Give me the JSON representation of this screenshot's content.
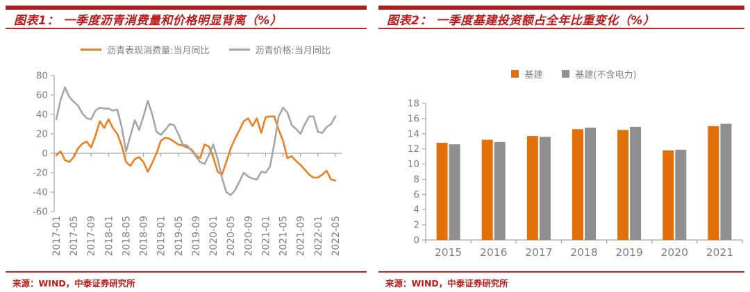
{
  "panels": [
    {
      "title": "图表1： 一季度沥青消费量和价格明显背离（%）",
      "source": "来源：WIND，中泰证券研究所"
    },
    {
      "title": "图表2： 一季度基建投资额占全年比重变化（%）",
      "source": "来源：WIND，中泰证券研究所"
    }
  ],
  "colors": {
    "header_rule_red": "#A82020",
    "title_red": "#C01919",
    "thin_rule_red": "#C02525",
    "source_red": "#BE1A1A",
    "axis_gray": "#A6A6A6",
    "label_gray": "#7F7F7F"
  },
  "chart_data": [
    {
      "type": "line",
      "title": "一季度沥青消费量和价格明显背离（%）",
      "x_start": "2017-01",
      "x_end": "2022-05",
      "points_per_series": 65,
      "x_tick_interval_months": 4,
      "x_tick_labels": [
        "2017-01",
        "2017-05",
        "2017-09",
        "2018-01",
        "2018-05",
        "2018-09",
        "2019-01",
        "2019-05",
        "2019-09",
        "2020-01",
        "2020-05",
        "2020-09",
        "2021-01",
        "2021-05",
        "2021-09",
        "2022-01",
        "2022-05"
      ],
      "ylim": [
        -60,
        80
      ],
      "y_ticks": [
        80,
        60,
        40,
        20,
        0,
        -20,
        -40,
        -60
      ],
      "grid": false,
      "legend_position": "top",
      "series": [
        {
          "name": "沥青表现消费量:当月同比",
          "color": "#EE7E20",
          "values": [
            -2,
            2,
            -7,
            -9,
            -4,
            5,
            10,
            12,
            6,
            18,
            33,
            26,
            35,
            26,
            20,
            8,
            -9,
            -13,
            -6,
            -4,
            -9,
            -19,
            -10,
            0,
            13,
            16,
            15,
            12,
            9,
            8,
            6,
            4,
            -2,
            -5,
            9,
            7,
            -4,
            -19,
            -22,
            -9,
            5,
            15,
            24,
            33,
            36,
            28,
            36,
            21,
            37,
            38,
            38,
            24,
            13,
            -5,
            -3,
            -8,
            -12,
            -17,
            -22,
            -25,
            -25,
            -22,
            -18,
            -27,
            -28
          ]
        },
        {
          "name": "沥青价格:当月同比",
          "color": "#A6A6A6",
          "values": [
            35,
            55,
            68,
            58,
            53,
            49,
            41,
            36,
            35,
            44,
            47,
            46,
            46,
            44,
            45,
            27,
            2,
            18,
            34,
            24,
            38,
            54,
            40,
            22,
            19,
            24,
            30,
            29,
            20,
            9,
            8,
            3,
            -3,
            -9,
            -11,
            -2,
            9,
            -6,
            -25,
            -40,
            -43,
            -38,
            -29,
            -20,
            -24,
            -26,
            -27,
            -19,
            -20,
            -14,
            10,
            38,
            47,
            42,
            29,
            25,
            20,
            30,
            38,
            38,
            22,
            21,
            27,
            30,
            38
          ]
        }
      ]
    },
    {
      "type": "bar",
      "title": "一季度基建投资额占全年比重变化（%）",
      "categories": [
        "2015",
        "2016",
        "2017",
        "2018",
        "2019",
        "2020",
        "2021"
      ],
      "ylim": [
        0,
        18
      ],
      "y_ticks": [
        18,
        16,
        14,
        12,
        10,
        8,
        6,
        4,
        2,
        0
      ],
      "grid": false,
      "legend_position": "top",
      "series": [
        {
          "name": "基建",
          "color": "#E2700A",
          "values": [
            12.8,
            13.2,
            13.7,
            14.6,
            14.5,
            11.8,
            15.0
          ]
        },
        {
          "name": "基建(不含电力)",
          "color": "#8F8F8F",
          "values": [
            12.6,
            12.9,
            13.6,
            14.8,
            14.9,
            11.9,
            15.3
          ]
        }
      ]
    }
  ]
}
